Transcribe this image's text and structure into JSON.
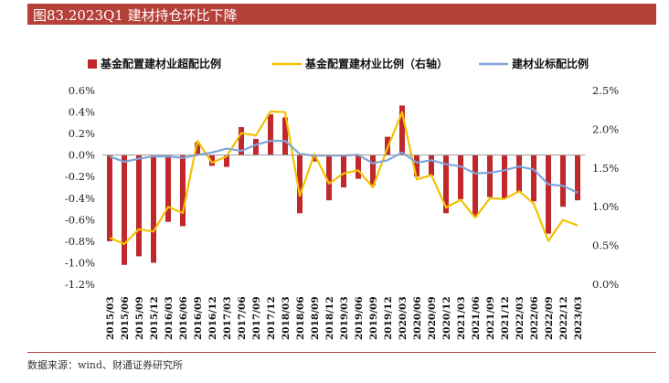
{
  "header": {
    "title": "图83.2023Q1 建材持仓环比下降"
  },
  "footer": {
    "source": "数据来源：wind、财通证券研究所"
  },
  "colors": {
    "title_bar": "#b5413a",
    "bar": "#c0282c",
    "line_total": "#f2c200",
    "line_standard": "#7ea6dc"
  },
  "chart_data": {
    "type": "bar",
    "title": "",
    "categories": [
      "2015/03",
      "2015/06",
      "2015/09",
      "2015/12",
      "2016/03",
      "2016/06",
      "2016/09",
      "2016/12",
      "2017/03",
      "2017/06",
      "2017/09",
      "2017/12",
      "2018/03",
      "2018/06",
      "2018/09",
      "2018/12",
      "2019/03",
      "2019/06",
      "2019/09",
      "2019/12",
      "2020/03",
      "2020/06",
      "2020/09",
      "2020/12",
      "2021/03",
      "2021/06",
      "2021/09",
      "2021/12",
      "2022/03",
      "2022/06",
      "2022/09",
      "2022/12",
      "2023/03"
    ],
    "left_axis": {
      "ylim": [
        -1.2,
        0.6
      ],
      "ticks": [
        "0.6%",
        "0.4%",
        "0.2%",
        "0.0%",
        "-0.2%",
        "-0.4%",
        "-0.6%",
        "-0.8%",
        "-1.0%",
        "-1.2%"
      ],
      "tick_values": [
        0.6,
        0.4,
        0.2,
        0,
        -0.2,
        -0.4,
        -0.6,
        -0.8,
        -1.0,
        -1.2
      ]
    },
    "right_axis": {
      "ylim": [
        0,
        2.5
      ],
      "ticks": [
        "2.5%",
        "2.0%",
        "1.5%",
        "1.0%",
        "0.5%",
        "0.0%"
      ],
      "tick_values": [
        2.5,
        2.0,
        1.5,
        1.0,
        0.5,
        0
      ]
    },
    "series": [
      {
        "name": "基金配置建材业超配比例",
        "kind": "bar",
        "axis": "left",
        "values": [
          -0.8,
          -1.02,
          -0.94,
          -1.0,
          -0.62,
          -0.66,
          0.12,
          -0.1,
          -0.11,
          0.26,
          0.15,
          0.38,
          0.35,
          -0.54,
          -0.06,
          -0.42,
          -0.3,
          -0.22,
          -0.28,
          0.17,
          0.46,
          -0.2,
          -0.19,
          -0.54,
          -0.41,
          -0.57,
          -0.39,
          -0.4,
          -0.34,
          -0.43,
          -0.73,
          -0.48,
          -0.42
        ]
      },
      {
        "name": "基金配置建材业比例（右轴）",
        "kind": "line",
        "axis": "right",
        "values": [
          0.6,
          0.52,
          0.71,
          0.68,
          1.0,
          0.92,
          1.85,
          1.57,
          1.65,
          1.95,
          1.92,
          2.23,
          2.22,
          1.14,
          1.68,
          1.3,
          1.43,
          1.47,
          1.25,
          1.76,
          2.22,
          1.35,
          1.41,
          0.99,
          1.09,
          0.86,
          1.11,
          1.1,
          1.2,
          1.04,
          0.56,
          0.83,
          0.76
        ]
      },
      {
        "name": "建材业标配比例",
        "kind": "line",
        "axis": "right",
        "values": [
          1.65,
          1.58,
          1.62,
          1.65,
          1.65,
          1.63,
          1.67,
          1.7,
          1.75,
          1.72,
          1.8,
          1.85,
          1.85,
          1.68,
          1.66,
          1.66,
          1.66,
          1.67,
          1.56,
          1.6,
          1.7,
          1.57,
          1.6,
          1.55,
          1.52,
          1.43,
          1.44,
          1.47,
          1.52,
          1.48,
          1.29,
          1.27,
          1.18
        ]
      }
    ],
    "legend_position": "top"
  }
}
